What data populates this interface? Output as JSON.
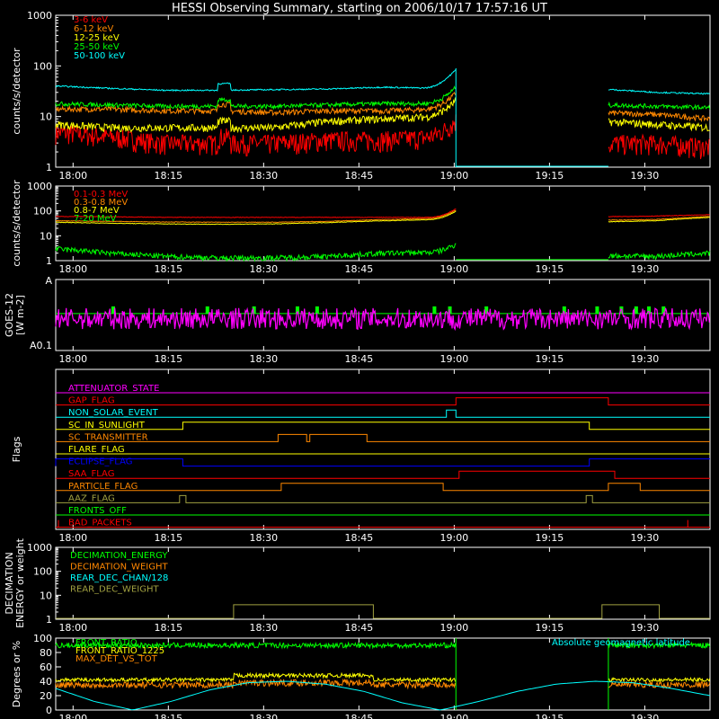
{
  "title": "HESSI Observing Summary, starting on 2006/10/17 17:57:16 UT",
  "colors": {
    "background": "#000000",
    "axes": "#ffffff",
    "red": "#ff0000",
    "orange": "#ff8800",
    "yellow": "#ffff00",
    "green": "#00ff00",
    "cyan": "#00ffff",
    "magenta": "#ff00ff",
    "blue": "#0000ff",
    "olive": "#a0a040"
  },
  "x_ticks": [
    "18:00",
    "18:15",
    "18:30",
    "18:45",
    "19:00",
    "19:15",
    "19:30"
  ],
  "chart_data": [
    {
      "type": "line",
      "id": "low-energy-counts",
      "ylabel": "counts/s/detector",
      "yscale": "log",
      "ylim": [
        1,
        1000
      ],
      "ytick_labels": [
        "1",
        "10",
        "100",
        "1000"
      ],
      "x_range_minutes_after_17_57_16": [
        0,
        103
      ],
      "gap_minutes": [
        63,
        87
      ],
      "series": [
        {
          "name": "3-6 keV",
          "color": "#ff0000",
          "values": [
            5,
            4,
            3,
            3,
            3,
            3.5,
            3.5,
            4,
            4,
            3.5,
            3,
            3,
            2.5
          ]
        },
        {
          "name": "6-12 keV",
          "color": "#ff8800",
          "values": [
            14,
            14,
            13,
            13,
            12,
            13,
            13,
            14,
            13,
            12,
            12,
            11,
            9
          ]
        },
        {
          "name": "12-25 keV",
          "color": "#ffff00",
          "values": [
            7,
            6,
            6,
            6,
            6,
            8,
            9,
            10,
            9,
            8,
            8,
            7,
            6
          ]
        },
        {
          "name": "25-50 keV",
          "color": "#00ff00",
          "values": [
            18,
            17,
            16,
            16,
            16,
            17,
            18,
            18,
            18,
            18,
            17,
            16,
            15
          ]
        },
        {
          "name": "50-100 keV",
          "color": "#00ffff",
          "values": [
            40,
            36,
            33,
            33,
            34,
            35,
            38,
            36,
            33,
            33,
            35,
            30,
            28
          ]
        }
      ]
    },
    {
      "type": "line",
      "id": "high-energy-counts",
      "ylabel": "counts/s/detector",
      "yscale": "log",
      "ylim": [
        1,
        1000
      ],
      "ytick_labels": [
        "1",
        "10",
        "100",
        "1000"
      ],
      "series": [
        {
          "name": "0.1-0.3 MeV",
          "color": "#ff0000",
          "values": [
            60,
            58,
            55,
            55,
            55,
            55,
            55,
            55,
            55,
            56,
            58,
            62,
            70
          ]
        },
        {
          "name": "0.3-0.8 MeV",
          "color": "#ff8800",
          "values": [
            40,
            38,
            36,
            35,
            35,
            38,
            45,
            50,
            48,
            44,
            42,
            45,
            60
          ]
        },
        {
          "name": "0.8-7 MeV",
          "color": "#ffff00",
          "values": [
            35,
            32,
            30,
            29,
            30,
            34,
            40,
            45,
            42,
            38,
            36,
            40,
            55
          ]
        },
        {
          "name": "7-20 MeV",
          "color": "#00ff00",
          "values": [
            3,
            2,
            1.5,
            1.3,
            1.3,
            1.5,
            2,
            2.2,
            2,
            1.8,
            1.6,
            1.5,
            2
          ]
        }
      ]
    },
    {
      "type": "line",
      "id": "goes",
      "ylabel": "GOES-12",
      "ylabel2": "[W m-2]",
      "ytick_labels": [
        "A",
        "A0.1"
      ],
      "series": [
        {
          "name": "GOES 1-8 A",
          "color": "#ff00ff",
          "level": 0.45
        },
        {
          "name": "GOES 0.5-4 A",
          "color": "#00ff00",
          "level": 0.52
        }
      ]
    },
    {
      "type": "flags",
      "id": "flags",
      "ylabel": "Flags",
      "items": [
        {
          "name": "ATTENUATOR_STATE",
          "color": "#ff00ff",
          "highs": []
        },
        {
          "name": "GAP_FLAG",
          "color": "#ff0000",
          "highs": [
            [
              63,
              87
            ]
          ]
        },
        {
          "name": "NON_SOLAR_EVENT",
          "color": "#00ffff",
          "highs": [
            [
              61.5,
              63
            ]
          ]
        },
        {
          "name": "SC_IN_SUNLIGHT",
          "color": "#ffff00",
          "highs": [
            [
              20,
              84
            ]
          ]
        },
        {
          "name": "SC_TRANSMITTER",
          "color": "#ff8800",
          "highs": [
            [
              35,
              39.5
            ],
            [
              40,
              49
            ]
          ]
        },
        {
          "name": "FLARE_FLAG",
          "color": "#ffff00",
          "highs": []
        },
        {
          "name": "ECLIPSE_FLAG",
          "color": "#0000ff",
          "highs": [
            [
              0,
              20
            ],
            [
              84,
              103
            ]
          ]
        },
        {
          "name": "SAA_FLAG",
          "color": "#ff0000",
          "highs": [
            [
              63.5,
              88
            ]
          ]
        },
        {
          "name": "PARTICLE_FLAG",
          "color": "#ff8800",
          "highs": [
            [
              35.5,
              61
            ],
            [
              87,
              92
            ]
          ]
        },
        {
          "name": "AAZ_FLAG",
          "color": "#a0a040",
          "highs": [
            [
              19.5,
              20.5
            ],
            [
              83.5,
              84.5
            ]
          ]
        },
        {
          "name": "FRONTS_OFF",
          "color": "#00ff00",
          "highs": []
        },
        {
          "name": "BAD_PACKETS",
          "color": "#ff0000",
          "highs": []
        }
      ]
    },
    {
      "type": "line",
      "id": "decimation",
      "ylabel": "DECIMATION",
      "ylabel2": "ENERGY or weight",
      "yscale": "log",
      "ylim": [
        1,
        1000
      ],
      "ytick_labels": [
        "1",
        "10",
        "100",
        "1000"
      ],
      "series": [
        {
          "name": "DECIMATION_ENERGY",
          "color": "#00ff00",
          "values": []
        },
        {
          "name": "DECIMATION_WEIGHT",
          "color": "#ff8800",
          "values": []
        },
        {
          "name": "REAR_DEC_CHAN/128",
          "color": "#00ffff",
          "values": []
        },
        {
          "name": "REAR_DEC_WEIGHT",
          "color": "#a0a040",
          "segments": [
            [
              28,
              50,
              4
            ],
            [
              86,
              95,
              4
            ]
          ]
        }
      ]
    },
    {
      "type": "line",
      "id": "ratios",
      "ylabel": "Degrees or %",
      "ylim": [
        0,
        100
      ],
      "ytick_labels": [
        "0",
        "20",
        "40",
        "60",
        "80",
        "100"
      ],
      "annotation": "Absolute geomagnetic latitude",
      "series": [
        {
          "name": "FRONT_RATIO",
          "color": "#00ff00",
          "level": 90
        },
        {
          "name": "FRONT_RATIO_1225",
          "color": "#ffff00",
          "level": 42
        },
        {
          "name": "MAX_DET_VS_TOT",
          "color": "#ff8800",
          "level": 35
        },
        {
          "name": "Absolute geomagnetic latitude",
          "color": "#00ffff",
          "values": [
            30,
            12,
            0,
            12,
            28,
            38,
            40,
            36,
            26,
            10,
            0,
            12,
            26,
            36,
            40,
            38,
            30,
            20
          ]
        }
      ]
    }
  ]
}
